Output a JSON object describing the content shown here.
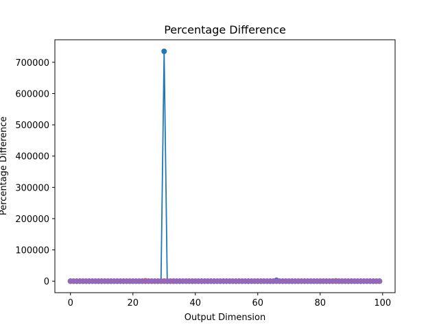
{
  "chart_data": {
    "type": "line",
    "title": "Percentage Difference",
    "xlabel": "Output Dimension",
    "ylabel": "Percentage Difference",
    "xlim": [
      -5,
      104
    ],
    "ylim": [
      -36750,
      772000
    ],
    "xticks": [
      0,
      20,
      40,
      60,
      80,
      100
    ],
    "xtick_labels": [
      "0",
      "20",
      "40",
      "60",
      "80",
      "100"
    ],
    "yticks": [
      0,
      100000,
      200000,
      300000,
      400000,
      500000,
      600000,
      700000
    ],
    "ytick_labels": [
      "0",
      "100000",
      "200000",
      "300000",
      "400000",
      "500000",
      "600000",
      "700000"
    ],
    "grid": false,
    "marker": "circle",
    "x": [
      0,
      1,
      2,
      3,
      4,
      5,
      6,
      7,
      8,
      9,
      10,
      11,
      12,
      13,
      14,
      15,
      16,
      17,
      18,
      19,
      20,
      21,
      22,
      23,
      24,
      25,
      26,
      27,
      28,
      29,
      30,
      31,
      32,
      33,
      34,
      35,
      36,
      37,
      38,
      39,
      40,
      41,
      42,
      43,
      44,
      45,
      46,
      47,
      48,
      49,
      50,
      51,
      52,
      53,
      54,
      55,
      56,
      57,
      58,
      59,
      60,
      61,
      62,
      63,
      64,
      65,
      66,
      67,
      68,
      69,
      70,
      71,
      72,
      73,
      74,
      75,
      76,
      77,
      78,
      79,
      80,
      81,
      82,
      83,
      84,
      85,
      86,
      87,
      88,
      89,
      90,
      91,
      92,
      93,
      94,
      95,
      96,
      97,
      98,
      99
    ],
    "series": [
      {
        "color": "#1f77b4",
        "values": [
          0,
          0,
          0,
          0,
          0,
          0,
          0,
          0,
          0,
          0,
          0,
          0,
          0,
          0,
          0,
          0,
          0,
          0,
          0,
          0,
          0,
          0,
          0,
          0,
          0,
          0,
          0,
          0,
          0,
          0,
          735000,
          0,
          0,
          0,
          0,
          0,
          0,
          0,
          0,
          0,
          0,
          0,
          0,
          0,
          0,
          0,
          0,
          0,
          0,
          0,
          0,
          0,
          0,
          0,
          0,
          0,
          0,
          0,
          0,
          0,
          0,
          0,
          0,
          0,
          0,
          0,
          3000,
          0,
          0,
          0,
          0,
          0,
          0,
          0,
          0,
          0,
          0,
          0,
          0,
          0,
          0,
          0,
          0,
          0,
          0,
          0,
          0,
          0,
          0,
          0,
          0,
          0,
          0,
          0,
          0,
          0,
          0,
          0,
          0,
          0
        ]
      },
      {
        "color": "#ff7f0e",
        "values": [
          0,
          0,
          0,
          0,
          0,
          0,
          0,
          0,
          0,
          0,
          0,
          0,
          0,
          0,
          0,
          0,
          0,
          0,
          0,
          0,
          0,
          0,
          0,
          0,
          1500,
          0,
          0,
          0,
          0,
          0,
          0,
          0,
          0,
          0,
          0,
          0,
          0,
          0,
          0,
          0,
          0,
          0,
          0,
          0,
          0,
          0,
          0,
          0,
          0,
          0,
          0,
          0,
          0,
          0,
          0,
          0,
          0,
          0,
          0,
          0,
          0,
          0,
          0,
          0,
          0,
          0,
          0,
          0,
          0,
          0,
          0,
          0,
          0,
          0,
          0,
          0,
          0,
          0,
          0,
          0,
          0,
          0,
          0,
          0,
          0,
          1200,
          0,
          0,
          0,
          0,
          0,
          0,
          0,
          0,
          0,
          0,
          0,
          0,
          0,
          0
        ]
      },
      {
        "color": "#2ca02c",
        "values": [
          0,
          0,
          0,
          0,
          0,
          0,
          0,
          0,
          0,
          0,
          0,
          0,
          0,
          0,
          0,
          0,
          0,
          0,
          0,
          0,
          0,
          0,
          0,
          0,
          0,
          0,
          0,
          0,
          0,
          0,
          0,
          0,
          0,
          0,
          0,
          0,
          0,
          0,
          0,
          0,
          0,
          0,
          0,
          0,
          0,
          0,
          0,
          0,
          0,
          0,
          0,
          0,
          0,
          0,
          0,
          0,
          0,
          0,
          0,
          0,
          0,
          0,
          0,
          0,
          0,
          0,
          0,
          0,
          0,
          0,
          0,
          0,
          0,
          0,
          0,
          0,
          0,
          0,
          0,
          0,
          0,
          0,
          0,
          0,
          0,
          0,
          0,
          0,
          0,
          0,
          0,
          0,
          0,
          0,
          0,
          0,
          0,
          0,
          0,
          0
        ]
      },
      {
        "color": "#d62728",
        "values": [
          0,
          0,
          0,
          0,
          0,
          0,
          0,
          0,
          0,
          0,
          0,
          0,
          0,
          0,
          0,
          0,
          0,
          0,
          0,
          0,
          0,
          0,
          0,
          0,
          0,
          0,
          0,
          0,
          0,
          0,
          0,
          0,
          0,
          0,
          0,
          0,
          0,
          0,
          0,
          0,
          0,
          0,
          0,
          0,
          0,
          0,
          0,
          0,
          0,
          0,
          0,
          0,
          0,
          0,
          0,
          0,
          0,
          0,
          0,
          0,
          0,
          0,
          0,
          0,
          0,
          0,
          0,
          0,
          0,
          0,
          0,
          0,
          0,
          0,
          0,
          0,
          0,
          0,
          0,
          0,
          0,
          0,
          0,
          0,
          0,
          0,
          0,
          0,
          0,
          0,
          0,
          0,
          0,
          0,
          0,
          0,
          0,
          0,
          0,
          0
        ]
      },
      {
        "color": "#9467bd",
        "values": [
          0,
          0,
          0,
          0,
          0,
          0,
          0,
          0,
          0,
          0,
          0,
          0,
          0,
          0,
          0,
          0,
          0,
          0,
          0,
          0,
          0,
          0,
          0,
          0,
          0,
          0,
          0,
          0,
          0,
          0,
          0,
          0,
          0,
          0,
          0,
          0,
          0,
          0,
          0,
          0,
          0,
          0,
          0,
          0,
          0,
          0,
          0,
          0,
          0,
          0,
          0,
          0,
          0,
          0,
          0,
          0,
          0,
          0,
          0,
          0,
          0,
          0,
          0,
          0,
          0,
          0,
          0,
          0,
          0,
          0,
          0,
          0,
          0,
          0,
          0,
          0,
          0,
          0,
          0,
          0,
          0,
          0,
          0,
          0,
          0,
          0,
          0,
          0,
          0,
          0,
          0,
          0,
          0,
          0,
          0,
          0,
          0,
          0,
          0,
          0
        ]
      }
    ]
  }
}
